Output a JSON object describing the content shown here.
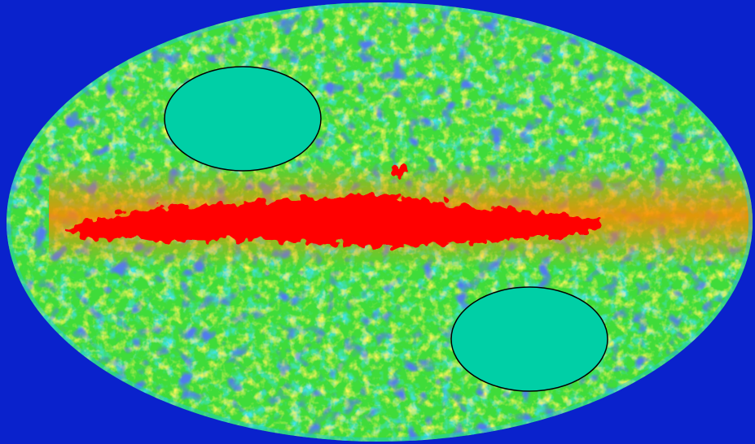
{
  "colors": {
    "background": "#0a22cc",
    "sky_base": "#3fdc3a",
    "sky_cool": "#18c9d8",
    "sky_cold": "#1630d8",
    "sky_warm": "#e6e62a",
    "sky_hot": "#ff8a00",
    "galactic_band": "#ff0000",
    "mask_fill": "#00cfa6",
    "mask_stroke": "#000000"
  },
  "masks": [
    {
      "id": "mask-ellipse-upper-left"
    },
    {
      "id": "mask-ellipse-lower-right"
    }
  ]
}
